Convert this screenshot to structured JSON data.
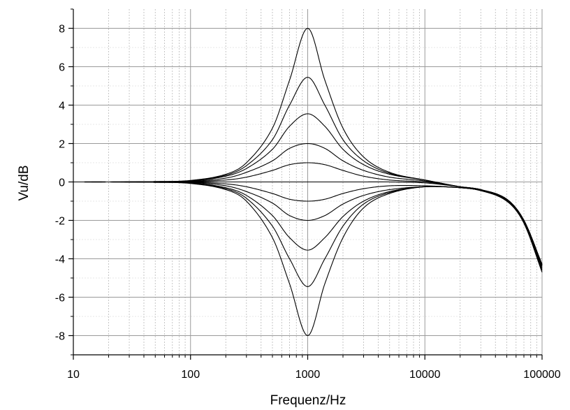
{
  "chart_data": {
    "type": "line",
    "title": "",
    "xlabel": "Frequenz/Hz",
    "ylabel": "Vu/dB",
    "x_scale": "log",
    "xlim": [
      10,
      100000
    ],
    "ylim": [
      -9,
      9
    ],
    "x_ticks": [
      10,
      100,
      1000,
      10000,
      100000
    ],
    "x_tick_labels": [
      "10",
      "100",
      "1000",
      "10000",
      "100000"
    ],
    "y_ticks": [
      -8,
      -6,
      -4,
      -2,
      0,
      2,
      4,
      6,
      8
    ],
    "y_tick_labels": [
      "-8",
      "-6",
      "-4",
      "-2",
      "0",
      "2",
      "4",
      "6",
      "8"
    ],
    "grid": true,
    "legend": "none",
    "line_color": "#000000",
    "x": [
      10,
      20,
      50,
      100,
      200,
      300,
      500,
      700,
      1000,
      1400,
      2000,
      3000,
      5000,
      10000,
      20000,
      30000,
      50000,
      70000,
      100000
    ],
    "series": [
      {
        "values": [
          0.0,
          0.0,
          0.02,
          0.08,
          0.4,
          1.0,
          2.8,
          5.3,
          8.0,
          5.3,
          2.8,
          1.3,
          0.5,
          0.1,
          -0.25,
          -0.4,
          -0.9,
          -2.0,
          -4.3
        ]
      },
      {
        "values": [
          0.0,
          0.0,
          0.02,
          0.06,
          0.35,
          0.85,
          2.2,
          4.0,
          5.45,
          4.0,
          2.2,
          1.1,
          0.45,
          0.1,
          -0.25,
          -0.4,
          -0.9,
          -2.0,
          -4.3
        ]
      },
      {
        "values": [
          0.0,
          0.0,
          0.02,
          0.05,
          0.3,
          0.7,
          1.7,
          2.9,
          3.55,
          2.9,
          1.7,
          0.9,
          0.4,
          0.1,
          -0.25,
          -0.4,
          -0.9,
          -2.0,
          -4.3
        ]
      },
      {
        "values": [
          0.0,
          0.0,
          0.01,
          0.03,
          0.2,
          0.5,
          1.1,
          1.75,
          2.0,
          1.75,
          1.1,
          0.6,
          0.25,
          0.05,
          -0.25,
          -0.4,
          -0.9,
          -2.0,
          -4.3
        ]
      },
      {
        "values": [
          0.0,
          0.0,
          0.0,
          0.02,
          0.1,
          0.25,
          0.6,
          0.9,
          1.0,
          0.9,
          0.6,
          0.3,
          0.1,
          0.0,
          -0.25,
          -0.4,
          -0.9,
          -2.0,
          -4.3
        ]
      },
      {
        "values": [
          0.0,
          0.0,
          0.0,
          0.0,
          0.0,
          0.0,
          0.0,
          0.0,
          0.0,
          0.0,
          0.0,
          0.0,
          0.0,
          -0.05,
          -0.25,
          -0.4,
          -0.9,
          -2.0,
          -4.3
        ]
      },
      {
        "values": [
          0.0,
          0.0,
          0.0,
          -0.02,
          -0.1,
          -0.25,
          -0.6,
          -0.9,
          -1.0,
          -0.9,
          -0.6,
          -0.35,
          -0.2,
          -0.2,
          -0.3,
          -0.45,
          -0.95,
          -2.05,
          -4.35
        ]
      },
      {
        "values": [
          0.0,
          0.0,
          -0.01,
          -0.03,
          -0.2,
          -0.5,
          -1.1,
          -1.75,
          -2.0,
          -1.75,
          -1.15,
          -0.7,
          -0.4,
          -0.25,
          -0.3,
          -0.45,
          -0.95,
          -2.05,
          -4.4
        ]
      },
      {
        "values": [
          0.0,
          0.0,
          -0.02,
          -0.05,
          -0.3,
          -0.7,
          -1.75,
          -2.9,
          -3.55,
          -2.9,
          -1.8,
          -1.0,
          -0.5,
          -0.25,
          -0.3,
          -0.45,
          -0.95,
          -2.1,
          -4.5
        ]
      },
      {
        "values": [
          0.0,
          0.0,
          -0.02,
          -0.06,
          -0.35,
          -0.85,
          -2.3,
          -4.0,
          -5.45,
          -4.0,
          -2.3,
          -1.15,
          -0.55,
          -0.25,
          -0.3,
          -0.45,
          -1.0,
          -2.1,
          -4.6
        ]
      },
      {
        "values": [
          0.0,
          0.0,
          -0.02,
          -0.08,
          -0.4,
          -1.0,
          -2.9,
          -5.3,
          -8.0,
          -5.3,
          -2.9,
          -1.35,
          -0.6,
          -0.25,
          -0.3,
          -0.45,
          -1.0,
          -2.15,
          -4.7
        ]
      }
    ]
  }
}
